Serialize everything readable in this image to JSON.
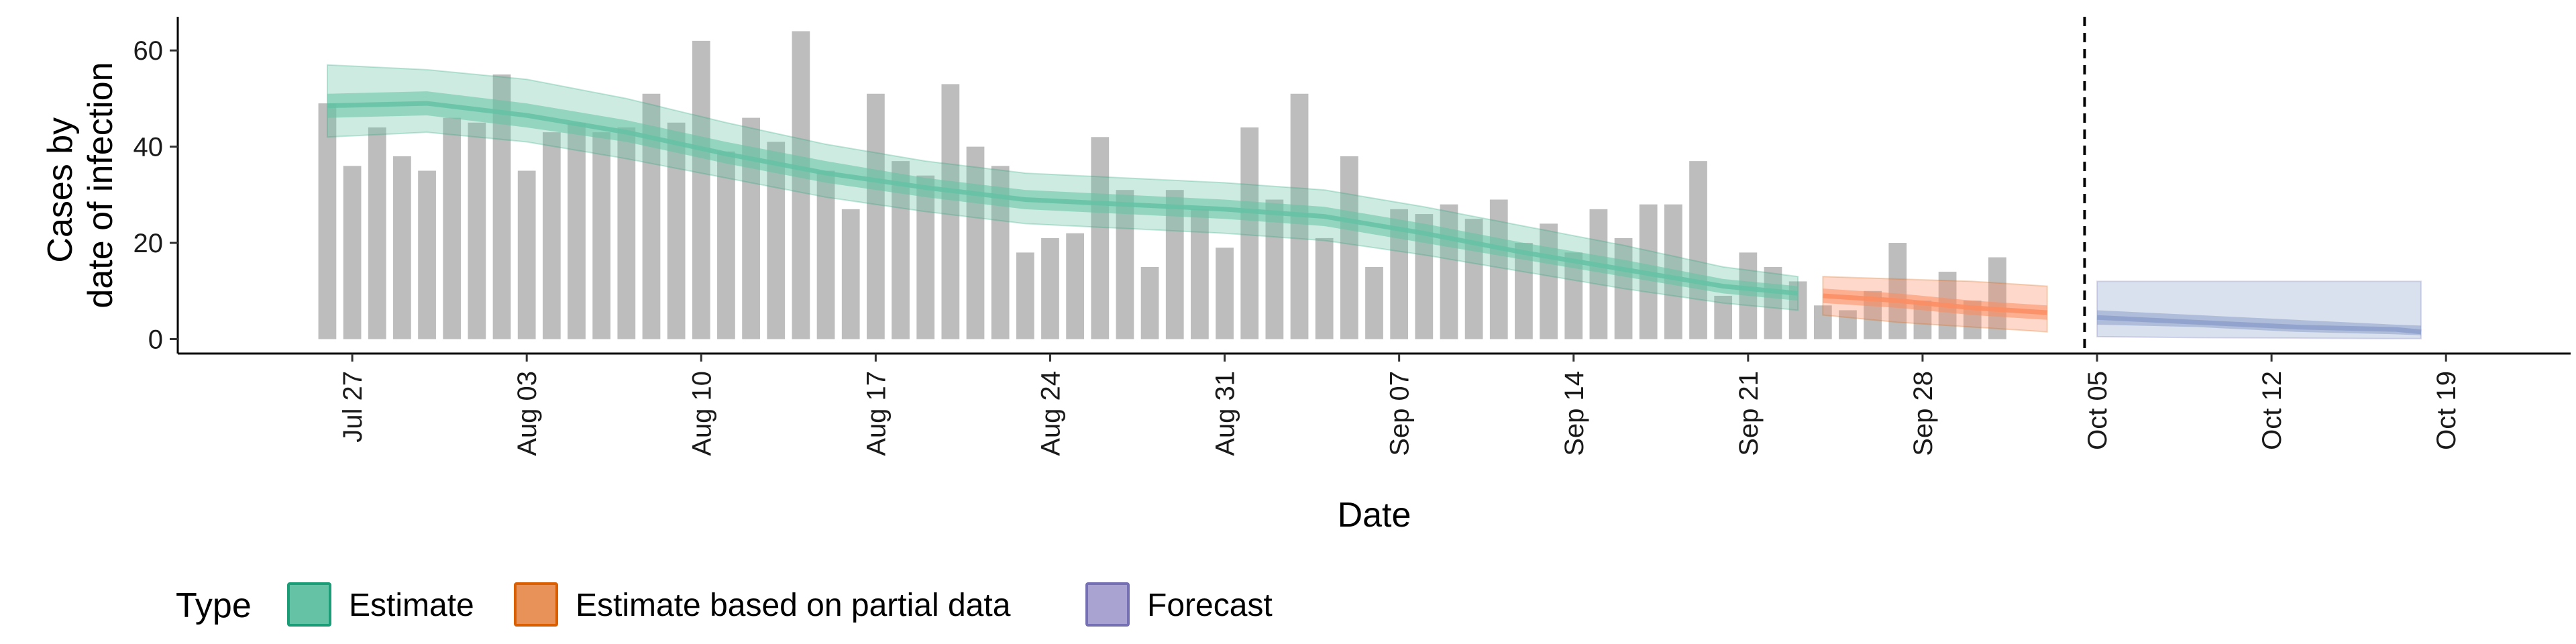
{
  "chart_data": {
    "type": "bar",
    "xlabel": "Date",
    "ylabel_lines": [
      "Cases by",
      "date of infection"
    ],
    "ylim": [
      -3,
      67
    ],
    "yticks": [
      0,
      20,
      40,
      60
    ],
    "x_range": [
      "2020-07-20",
      "2020-10-24"
    ],
    "xticks": [
      {
        "date": "2020-07-27",
        "label": "Jul 27"
      },
      {
        "date": "2020-08-03",
        "label": "Aug 03"
      },
      {
        "date": "2020-08-10",
        "label": "Aug 10"
      },
      {
        "date": "2020-08-17",
        "label": "Aug 17"
      },
      {
        "date": "2020-08-24",
        "label": "Aug 24"
      },
      {
        "date": "2020-08-31",
        "label": "Aug 31"
      },
      {
        "date": "2020-09-07",
        "label": "Sep 07"
      },
      {
        "date": "2020-09-14",
        "label": "Sep 14"
      },
      {
        "date": "2020-09-21",
        "label": "Sep 21"
      },
      {
        "date": "2020-09-28",
        "label": "Sep 28"
      },
      {
        "date": "2020-10-05",
        "label": "Oct 05"
      },
      {
        "date": "2020-10-12",
        "label": "Oct 12"
      },
      {
        "date": "2020-10-19",
        "label": "Oct 19"
      }
    ],
    "vline_date": "2020-10-04",
    "bars": {
      "start_date": "2020-07-26",
      "color": "#bdbdbd",
      "values": [
        49,
        36,
        44,
        38,
        35,
        46,
        45,
        55,
        35,
        43,
        45,
        43,
        44,
        51,
        45,
        62,
        39,
        46,
        41,
        64,
        35,
        27,
        51,
        37,
        34,
        53,
        40,
        36,
        18,
        21,
        22,
        42,
        31,
        15,
        31,
        27,
        19,
        44,
        29,
        51,
        21,
        38,
        15,
        27,
        26,
        28,
        25,
        29,
        20,
        24,
        18,
        27,
        21,
        28,
        28,
        37,
        9,
        18,
        15,
        12,
        7,
        6,
        10,
        20,
        8,
        14,
        8,
        17
      ]
    },
    "series": [
      {
        "name": "Estimate",
        "color": "#1b9e77",
        "fill": "#66c2a5",
        "points": [
          {
            "date": "2020-07-26",
            "median": 48.5,
            "lo50": 46,
            "hi50": 51,
            "lo90": 42,
            "hi90": 57
          },
          {
            "date": "2020-07-30",
            "median": 49,
            "lo50": 46.5,
            "hi50": 51.5,
            "lo90": 43,
            "hi90": 56
          },
          {
            "date": "2020-08-03",
            "median": 46.5,
            "lo50": 44,
            "hi50": 49,
            "lo90": 41,
            "hi90": 54
          },
          {
            "date": "2020-08-07",
            "median": 43,
            "lo50": 41,
            "hi50": 45.5,
            "lo90": 37.5,
            "hi90": 50
          },
          {
            "date": "2020-08-11",
            "median": 38.5,
            "lo50": 36.5,
            "hi50": 41,
            "lo90": 33.5,
            "hi90": 45
          },
          {
            "date": "2020-08-15",
            "median": 34.5,
            "lo50": 32.5,
            "hi50": 37,
            "lo90": 29.5,
            "hi90": 40.5
          },
          {
            "date": "2020-08-19",
            "median": 31.5,
            "lo50": 29.5,
            "hi50": 33.5,
            "lo90": 26.5,
            "hi90": 37
          },
          {
            "date": "2020-08-23",
            "median": 29,
            "lo50": 27,
            "hi50": 31,
            "lo90": 24,
            "hi90": 34.5
          },
          {
            "date": "2020-08-27",
            "median": 28,
            "lo50": 26,
            "hi50": 30,
            "lo90": 23,
            "hi90": 33.5
          },
          {
            "date": "2020-08-31",
            "median": 27,
            "lo50": 25,
            "hi50": 29,
            "lo90": 22,
            "hi90": 32.5
          },
          {
            "date": "2020-09-04",
            "median": 25.5,
            "lo50": 23.5,
            "hi50": 27.5,
            "lo90": 20.5,
            "hi90": 31
          },
          {
            "date": "2020-09-08",
            "median": 22,
            "lo50": 20,
            "hi50": 24,
            "lo90": 17.5,
            "hi90": 27.5
          },
          {
            "date": "2020-09-12",
            "median": 18,
            "lo50": 16.5,
            "hi50": 20,
            "lo90": 14,
            "hi90": 23.5
          },
          {
            "date": "2020-09-16",
            "median": 14.5,
            "lo50": 13,
            "hi50": 16.5,
            "lo90": 10.5,
            "hi90": 19.5
          },
          {
            "date": "2020-09-20",
            "median": 11,
            "lo50": 9.5,
            "hi50": 12.5,
            "lo90": 7.5,
            "hi90": 15
          },
          {
            "date": "2020-09-23",
            "median": 9.5,
            "lo50": 8,
            "hi50": 11,
            "lo90": 6,
            "hi90": 13
          }
        ]
      },
      {
        "name": "Estimate based on partial data",
        "color": "#d95f02",
        "fill": "#fc8d62",
        "points": [
          {
            "date": "2020-09-24",
            "median": 9,
            "lo50": 7.5,
            "hi50": 10.5,
            "lo90": 5,
            "hi90": 13
          },
          {
            "date": "2020-09-27",
            "median": 8,
            "lo50": 6.5,
            "hi50": 9.5,
            "lo90": 3.5,
            "hi90": 12.5
          },
          {
            "date": "2020-09-30",
            "median": 6.5,
            "lo50": 5,
            "hi50": 8,
            "lo90": 2.5,
            "hi90": 12
          },
          {
            "date": "2020-10-03",
            "median": 5.5,
            "lo50": 4,
            "hi50": 7,
            "lo90": 1.5,
            "hi90": 11
          }
        ]
      },
      {
        "name": "Forecast",
        "color": "#7570b3",
        "fill": "#8da0cb",
        "points": [
          {
            "date": "2020-10-05",
            "median": 4.5,
            "lo50": 3,
            "hi50": 6,
            "lo90": 0.5,
            "hi90": 12
          },
          {
            "date": "2020-10-09",
            "median": 3.5,
            "lo50": 2.5,
            "hi50": 5,
            "lo90": 0.3,
            "hi90": 12
          },
          {
            "date": "2020-10-13",
            "median": 2.5,
            "lo50": 1.5,
            "hi50": 4,
            "lo90": 0.2,
            "hi90": 12
          },
          {
            "date": "2020-10-17",
            "median": 2,
            "lo50": 1,
            "hi50": 3,
            "lo90": 0.1,
            "hi90": 12
          },
          {
            "date": "2020-10-18",
            "median": 1.5,
            "lo50": 0.8,
            "hi50": 2.8,
            "lo90": 0.1,
            "hi90": 12
          }
        ]
      }
    ],
    "legend": {
      "title": "Type",
      "position": "bottom-left",
      "items": [
        {
          "label": "Estimate",
          "fill": "#66c2a5",
          "stroke": "#1b9e77"
        },
        {
          "label": "Estimate based on partial data",
          "fill": "#e8925a",
          "stroke": "#d95f02"
        },
        {
          "label": "Forecast",
          "fill": "#a9a3d1",
          "stroke": "#7570b3"
        }
      ]
    },
    "grid": false
  }
}
